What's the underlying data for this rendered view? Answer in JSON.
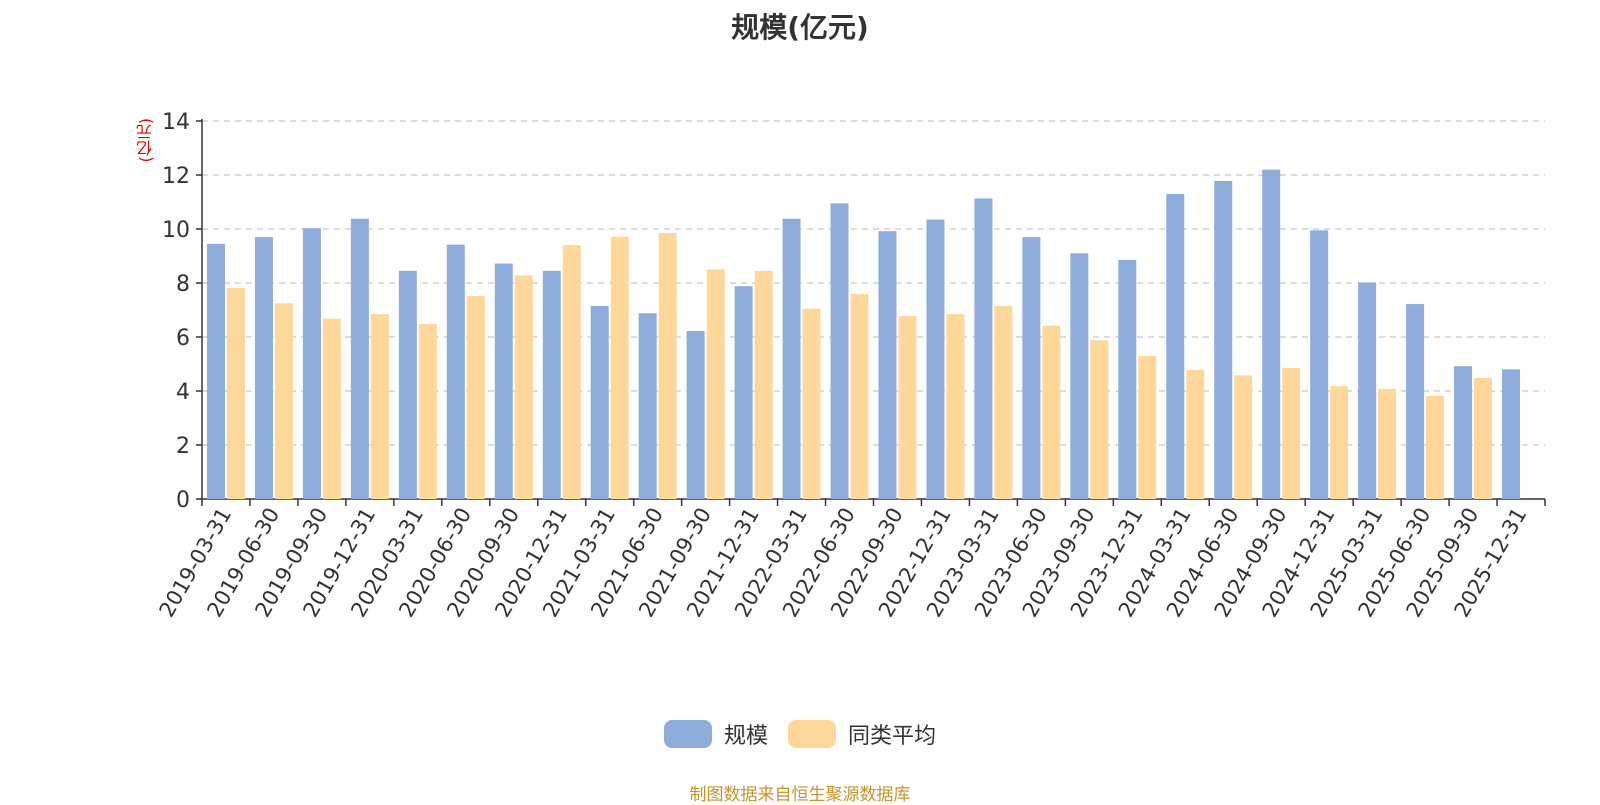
{
  "colors": {
    "series1": "#8eadda",
    "series2": "#fdd89a",
    "unit_label": "#e00000",
    "footer": "#c8922a"
  },
  "footer": "制图数据来自恒生聚源数据库",
  "chart_data": {
    "type": "bar",
    "title": "规模(亿元)",
    "ylabel": "(亿元)",
    "xlabel": "",
    "ylim": [
      0,
      14
    ],
    "yticks": [
      0,
      2,
      4,
      6,
      8,
      10,
      12,
      14
    ],
    "grid": true,
    "legend_position": "bottom-center",
    "categories": [
      "2019-03-31",
      "2019-06-30",
      "2019-09-30",
      "2019-12-31",
      "2020-03-31",
      "2020-06-30",
      "2020-09-30",
      "2020-12-31",
      "2021-03-31",
      "2021-06-30",
      "2021-09-30",
      "2021-12-31",
      "2022-03-31",
      "2022-06-30",
      "2022-09-30",
      "2022-12-31",
      "2023-03-31",
      "2023-06-30",
      "2023-09-30",
      "2023-12-31",
      "2024-03-31",
      "2024-06-30",
      "2024-09-30",
      "2024-12-31",
      "2025-03-31",
      "2025-06-30",
      "2025-09-30",
      "2025-12-31"
    ],
    "series": [
      {
        "name": "规模",
        "color": "#8eadda",
        "values": [
          9.45,
          9.7,
          10.03,
          10.38,
          8.45,
          9.42,
          8.72,
          8.45,
          7.15,
          6.88,
          6.22,
          7.88,
          10.38,
          10.95,
          9.92,
          10.35,
          11.13,
          9.7,
          9.1,
          8.85,
          11.3,
          11.78,
          12.2,
          9.95,
          8.02,
          7.22,
          4.92,
          4.8
        ]
      },
      {
        "name": "同类平均",
        "color": "#fdd89a",
        "values": [
          7.82,
          7.25,
          6.68,
          6.85,
          6.48,
          7.52,
          8.28,
          9.4,
          9.72,
          9.85,
          8.5,
          8.45,
          7.05,
          7.6,
          6.78,
          6.85,
          7.15,
          6.42,
          5.88,
          5.3,
          4.78,
          4.58,
          4.85,
          4.18,
          4.08,
          3.82,
          4.48,
          null
        ]
      }
    ]
  }
}
